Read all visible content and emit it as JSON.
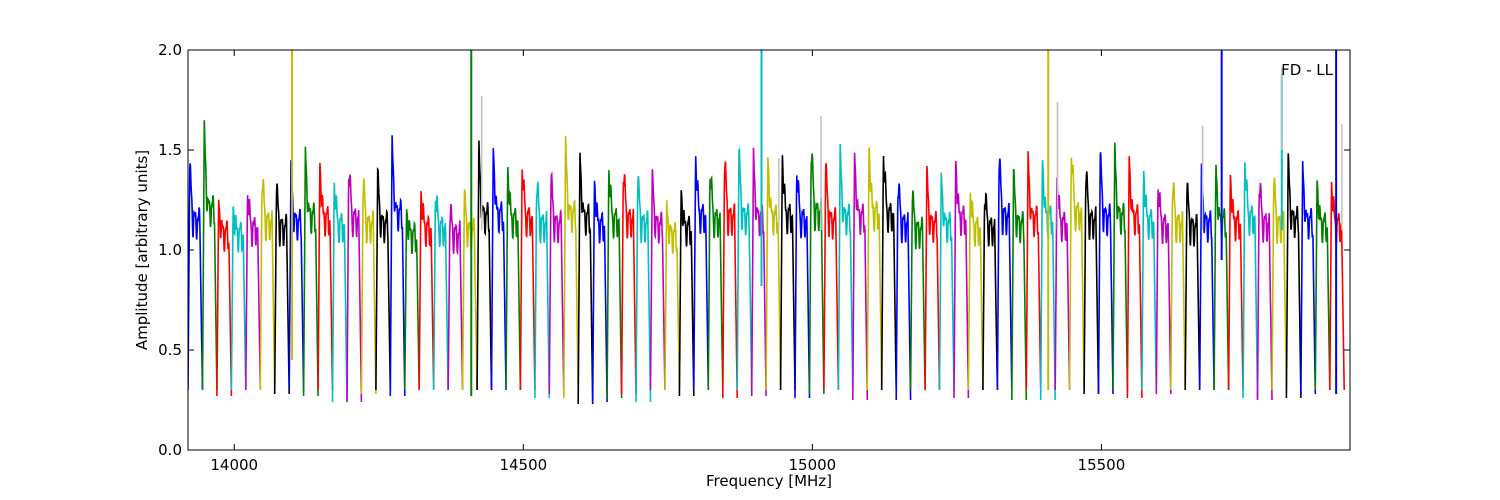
{
  "chart_data": {
    "type": "line",
    "xlabel": "Frequency [MHz]",
    "ylabel": "Amplitude [arbitrary units]",
    "xlim": [
      13920,
      15930
    ],
    "ylim": [
      0.0,
      2.0
    ],
    "xticks": [
      {
        "value": 14000,
        "label": "14000"
      },
      {
        "value": 14500,
        "label": "14500"
      },
      {
        "value": 15000,
        "label": "15000"
      },
      {
        "value": 15500,
        "label": "15500"
      }
    ],
    "yticks": [
      {
        "value": 0.0,
        "label": "0.0"
      },
      {
        "value": 0.5,
        "label": "0.5"
      },
      {
        "value": 1.0,
        "label": "1.0"
      },
      {
        "value": 1.5,
        "label": "1.5"
      },
      {
        "value": 2.0,
        "label": "2.0"
      }
    ],
    "legend": {
      "text": "FD - LL",
      "placement": "top-right"
    },
    "grid": false,
    "series_colors": [
      "#0000ff",
      "#008000",
      "#ff0000",
      "#00bfbf",
      "#bf00bf",
      "#bfbf00",
      "#000000"
    ],
    "bands": {
      "start_mhz": 13920,
      "width_mhz": 25,
      "count": 80,
      "peaks": [
        1.4,
        1.58,
        1.23,
        1.22,
        1.3,
        1.38,
        1.3,
        1.38,
        1.48,
        1.44,
        1.35,
        1.43,
        1.34,
        1.35,
        1.52,
        1.2,
        1.3,
        1.3,
        1.2,
        1.25,
        1.48,
        1.5,
        1.42,
        1.44,
        1.35,
        1.35,
        1.5,
        1.46,
        1.35,
        1.42,
        1.42,
        1.35,
        1.34,
        1.2,
        1.3,
        1.48,
        1.42,
        1.45,
        1.46,
        1.45,
        1.46,
        1.48,
        1.42,
        1.52,
        1.4,
        1.46,
        1.47,
        1.52,
        1.5,
        1.35,
        1.26,
        1.35,
        1.35,
        1.45,
        1.3,
        1.3,
        1.46,
        1.35,
        1.44,
        1.45,
        1.37,
        1.52,
        1.4,
        1.45,
        1.47,
        1.46,
        1.4,
        1.34,
        1.35,
        1.3,
        1.36,
        1.4,
        1.38,
        1.46,
        1.36,
        1.34,
        1.42,
        1.4,
        1.35,
        1.35
      ],
      "troughs": [
        0.3,
        0.3,
        0.27,
        0.3,
        0.3,
        0.3,
        0.28,
        0.3,
        0.27,
        0.3,
        0.24,
        0.24,
        0.28,
        0.3,
        0.27,
        0.3,
        0.3,
        0.3,
        0.3,
        0.3,
        0.3,
        0.3,
        0.3,
        0.3,
        0.26,
        0.28,
        0.26,
        0.23,
        0.24,
        0.26,
        0.28,
        0.24,
        0.3,
        0.3,
        0.27,
        0.3,
        0.3,
        0.26,
        0.3,
        0.27,
        0.3,
        0.3,
        0.26,
        0.28,
        0.3,
        0.3,
        0.25,
        0.3,
        0.3,
        0.25,
        0.3,
        0.3,
        0.3,
        0.26,
        0.3,
        0.3,
        0.3,
        0.25,
        0.3,
        0.25,
        0.3,
        0.3,
        0.28,
        0.28,
        0.3,
        0.26,
        0.3,
        0.28,
        0.3,
        0.3,
        0.3,
        0.3,
        0.3,
        0.26,
        0.25,
        0.3,
        0.26,
        0.28,
        0.3,
        0.3
      ]
    },
    "spikes": [
      {
        "x": 14100,
        "top": 2.0,
        "bottom": 0.45,
        "color": "#bfbf00"
      },
      {
        "x": 14410,
        "top": 2.0,
        "bottom": 0.27,
        "color": "#008000"
      },
      {
        "x": 14912,
        "top": 2.0,
        "bottom": 0.82,
        "color": "#00bfbf"
      },
      {
        "x": 15408,
        "top": 2.0,
        "bottom": 0.3,
        "color": "#bfbf00"
      },
      {
        "x": 15708,
        "top": 2.0,
        "bottom": 0.95,
        "color": "#0000ff"
      },
      {
        "x": 15812,
        "top": 1.88,
        "bottom": 1.1,
        "color": "#00bfbf"
      },
      {
        "x": 15906,
        "top": 2.0,
        "bottom": 0.28,
        "color": "#0000ff"
      },
      {
        "x": 14428,
        "top": 1.77,
        "bottom": 1.1,
        "color": "#c0c0c0"
      },
      {
        "x": 14942,
        "top": 1.46,
        "bottom": 1.1,
        "color": "#c0c0c0"
      },
      {
        "x": 15015,
        "top": 1.67,
        "bottom": 1.1,
        "color": "#c0c0c0"
      },
      {
        "x": 15424,
        "top": 1.74,
        "bottom": 1.1,
        "color": "#c0c0c0"
      },
      {
        "x": 15675,
        "top": 1.62,
        "bottom": 1.1,
        "color": "#c0c0c0"
      },
      {
        "x": 15812,
        "top": 1.91,
        "bottom": 1.5,
        "color": "#c0c0c0"
      },
      {
        "x": 15916,
        "top": 1.63,
        "bottom": 1.1,
        "color": "#c0c0c0"
      }
    ]
  }
}
